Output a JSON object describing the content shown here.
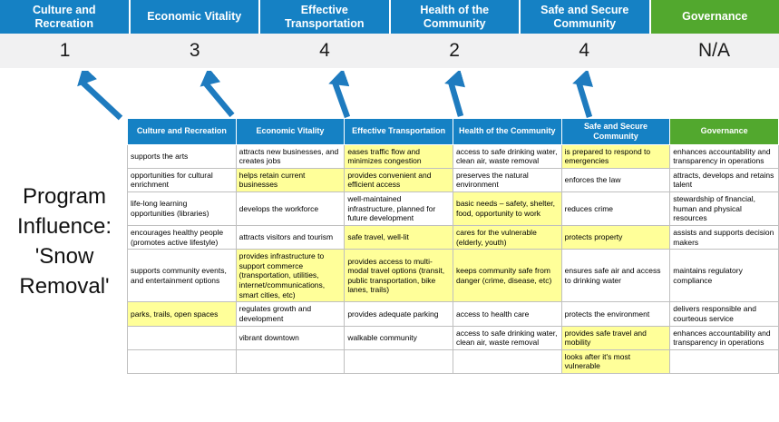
{
  "title": "Program Influence: 'Snow Removal'",
  "colors": {
    "blue": "#1581C4",
    "green": "#52A82E",
    "highlight": "#FFFF99",
    "arrow": "#1E7BBF",
    "score_bg": "#F1F1F2"
  },
  "summary": {
    "columns": [
      {
        "label": "Culture and Recreation",
        "score": "1",
        "color": "blue"
      },
      {
        "label": "Economic Vitality",
        "score": "3",
        "color": "blue"
      },
      {
        "label": "Effective Transportation",
        "score": "4",
        "color": "blue"
      },
      {
        "label": "Health of the Community",
        "score": "2",
        "color": "blue"
      },
      {
        "label": "Safe and Secure Community",
        "score": "4",
        "color": "blue"
      },
      {
        "label": "Governance",
        "score": "N/A",
        "color": "green"
      }
    ]
  },
  "table": {
    "headers": [
      {
        "label": "Culture and Recreation",
        "color": "blue"
      },
      {
        "label": "Economic Vitality",
        "color": "blue"
      },
      {
        "label": "Effective Transportation",
        "color": "blue"
      },
      {
        "label": "Health of the Community",
        "color": "blue"
      },
      {
        "label": "Safe and Secure Community",
        "color": "blue"
      },
      {
        "label": "Governance",
        "color": "green"
      }
    ],
    "rows": [
      [
        {
          "text": "supports the arts",
          "highlight": false
        },
        {
          "text": "attracts new businesses, and creates jobs",
          "highlight": false
        },
        {
          "text": "eases traffic flow and minimizes congestion",
          "highlight": true
        },
        {
          "text": "access to safe drinking water, clean air, waste removal",
          "highlight": false
        },
        {
          "text": "is prepared to respond to emergencies",
          "highlight": true
        },
        {
          "text": "enhances accountability and transparency in operations",
          "highlight": false
        }
      ],
      [
        {
          "text": "opportunities for cultural enrichment",
          "highlight": false
        },
        {
          "text": "helps retain current businesses",
          "highlight": true
        },
        {
          "text": "provides convenient and efficient access",
          "highlight": true
        },
        {
          "text": "preserves the natural environment",
          "highlight": false
        },
        {
          "text": "enforces the law",
          "highlight": false
        },
        {
          "text": "attracts, develops and retains talent",
          "highlight": false
        }
      ],
      [
        {
          "text": "life-long learning opportunities (libraries)",
          "highlight": false
        },
        {
          "text": "develops the workforce",
          "highlight": false
        },
        {
          "text": "well-maintained infrastructure, planned for future development",
          "highlight": false
        },
        {
          "text": "basic needs – safety, shelter, food, opportunity to work",
          "highlight": true
        },
        {
          "text": "reduces crime",
          "highlight": false
        },
        {
          "text": "stewardship of financial, human and physical resources",
          "highlight": false
        }
      ],
      [
        {
          "text": "encourages healthy people (promotes active lifestyle)",
          "highlight": false
        },
        {
          "text": "attracts visitors and tourism",
          "highlight": false
        },
        {
          "text": "safe travel, well-lit",
          "highlight": true
        },
        {
          "text": "cares for the vulnerable (elderly, youth)",
          "highlight": true
        },
        {
          "text": "protects property",
          "highlight": true
        },
        {
          "text": "assists and supports decision makers",
          "highlight": false
        }
      ],
      [
        {
          "text": "supports community events, and entertainment options",
          "highlight": false
        },
        {
          "text": "provides infrastructure to support commerce (transportation, utilities, internet/communications, smart cities, etc)",
          "highlight": true
        },
        {
          "text": "provides access to multi-modal travel options (transit, public transportation, bike lanes, trails)",
          "highlight": true
        },
        {
          "text": "keeps community safe from danger (crime, disease, etc)",
          "highlight": true
        },
        {
          "text": "ensures safe air and access to drinking water",
          "highlight": false
        },
        {
          "text": "maintains regulatory compliance",
          "highlight": false
        }
      ],
      [
        {
          "text": "parks, trails, open spaces",
          "highlight": true
        },
        {
          "text": "regulates growth and development",
          "highlight": false
        },
        {
          "text": "provides adequate parking",
          "highlight": false
        },
        {
          "text": "access to health care",
          "highlight": false
        },
        {
          "text": "protects the environment",
          "highlight": false
        },
        {
          "text": "delivers responsible and courteous service",
          "highlight": false
        }
      ],
      [
        {
          "text": "",
          "highlight": false
        },
        {
          "text": "vibrant downtown",
          "highlight": false
        },
        {
          "text": "walkable community",
          "highlight": false
        },
        {
          "text": "access to safe drinking water, clean air, waste removal",
          "highlight": false
        },
        {
          "text": "provides safe travel and mobility",
          "highlight": true
        },
        {
          "text": "enhances accountability and transparency in operations",
          "highlight": false
        }
      ],
      [
        {
          "text": "",
          "highlight": false
        },
        {
          "text": "",
          "highlight": false
        },
        {
          "text": "",
          "highlight": false
        },
        {
          "text": "",
          "highlight": false
        },
        {
          "text": "looks after it's most vulnerable",
          "highlight": true
        },
        {
          "text": "",
          "highlight": false
        }
      ]
    ]
  }
}
